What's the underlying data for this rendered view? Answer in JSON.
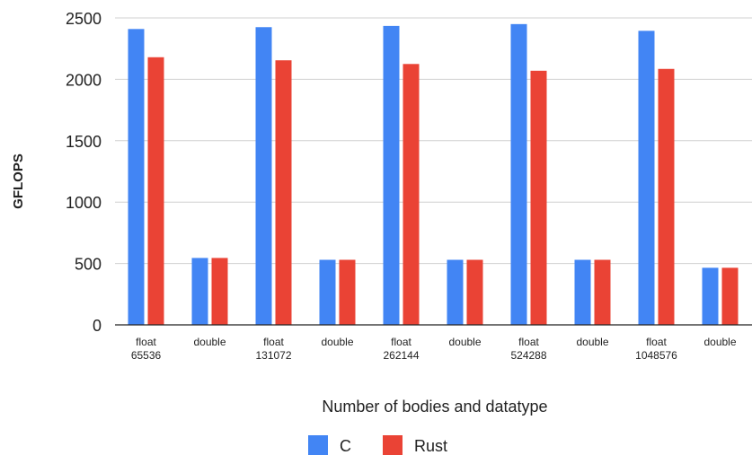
{
  "chart_data": {
    "type": "bar",
    "title": "",
    "xlabel": "Number of bodies and datatype",
    "ylabel": "GFLOPS",
    "ylim": [
      0,
      2500
    ],
    "yticks": [
      0,
      500,
      1000,
      1500,
      2000,
      2500
    ],
    "grid": true,
    "legend_position": "bottom",
    "categories": [
      [
        "float",
        "65536"
      ],
      [
        "double"
      ],
      [
        "float",
        "131072"
      ],
      [
        "double"
      ],
      [
        "float",
        "262144"
      ],
      [
        "double"
      ],
      [
        "float",
        "524288"
      ],
      [
        "double"
      ],
      [
        "float",
        "1048576"
      ],
      [
        "double"
      ]
    ],
    "series": [
      {
        "name": "C",
        "color": "#4285F4",
        "values": [
          2410,
          545,
          2425,
          530,
          2435,
          530,
          2450,
          530,
          2395,
          465
        ]
      },
      {
        "name": "Rust",
        "color": "#EA4335",
        "values": [
          2180,
          545,
          2155,
          530,
          2125,
          530,
          2070,
          530,
          2085,
          465
        ]
      }
    ]
  }
}
